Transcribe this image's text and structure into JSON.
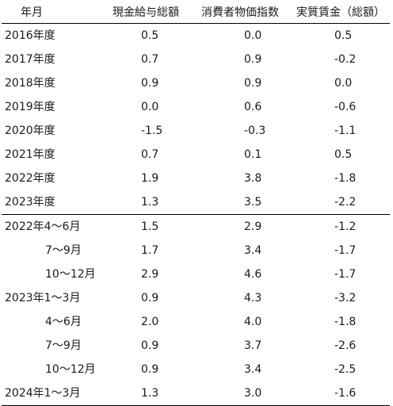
{
  "table": {
    "headers": [
      "年月",
      "現金給与総額",
      "消費者物価指数",
      "実質賃金（総額）"
    ],
    "rows": [
      {
        "label": "2016年度",
        "values": [
          "0.5",
          "0.0",
          "0.5"
        ]
      },
      {
        "label": "2017年度",
        "values": [
          "0.7",
          "0.9",
          "-0.2"
        ]
      },
      {
        "label": "2018年度",
        "values": [
          "0.9",
          "0.9",
          "0.0"
        ]
      },
      {
        "label": "2019年度",
        "values": [
          "0.0",
          "0.6",
          "-0.6"
        ]
      },
      {
        "label": "2020年度",
        "values": [
          "-1.5",
          "-0.3",
          "-1.1"
        ]
      },
      {
        "label": "2021年度",
        "values": [
          "0.7",
          "0.1",
          "0.5"
        ]
      },
      {
        "label": "2022年度",
        "values": [
          "1.9",
          "3.8",
          "-1.8"
        ]
      },
      {
        "label": "2023年度",
        "values": [
          "1.3",
          "3.5",
          "-2.2"
        ]
      },
      {
        "label": "2022年4～6月",
        "values": [
          "1.5",
          "2.9",
          "-1.2"
        ]
      },
      {
        "label": "7～9月",
        "values": [
          "1.7",
          "3.4",
          "-1.7"
        ]
      },
      {
        "label": "10～12月",
        "values": [
          "2.9",
          "4.6",
          "-1.7"
        ]
      },
      {
        "label": "2023年1～3月",
        "values": [
          "0.9",
          "4.3",
          "-3.2"
        ]
      },
      {
        "label": "4～6月",
        "values": [
          "2.0",
          "4.0",
          "-1.8"
        ]
      },
      {
        "label": "7～9月",
        "values": [
          "0.9",
          "3.7",
          "-2.6"
        ]
      },
      {
        "label": "10～12月",
        "values": [
          "0.9",
          "3.4",
          "-2.5"
        ]
      },
      {
        "label": "2024年1～3月",
        "values": [
          "1.3",
          "3.0",
          "-1.6"
        ]
      }
    ]
  }
}
